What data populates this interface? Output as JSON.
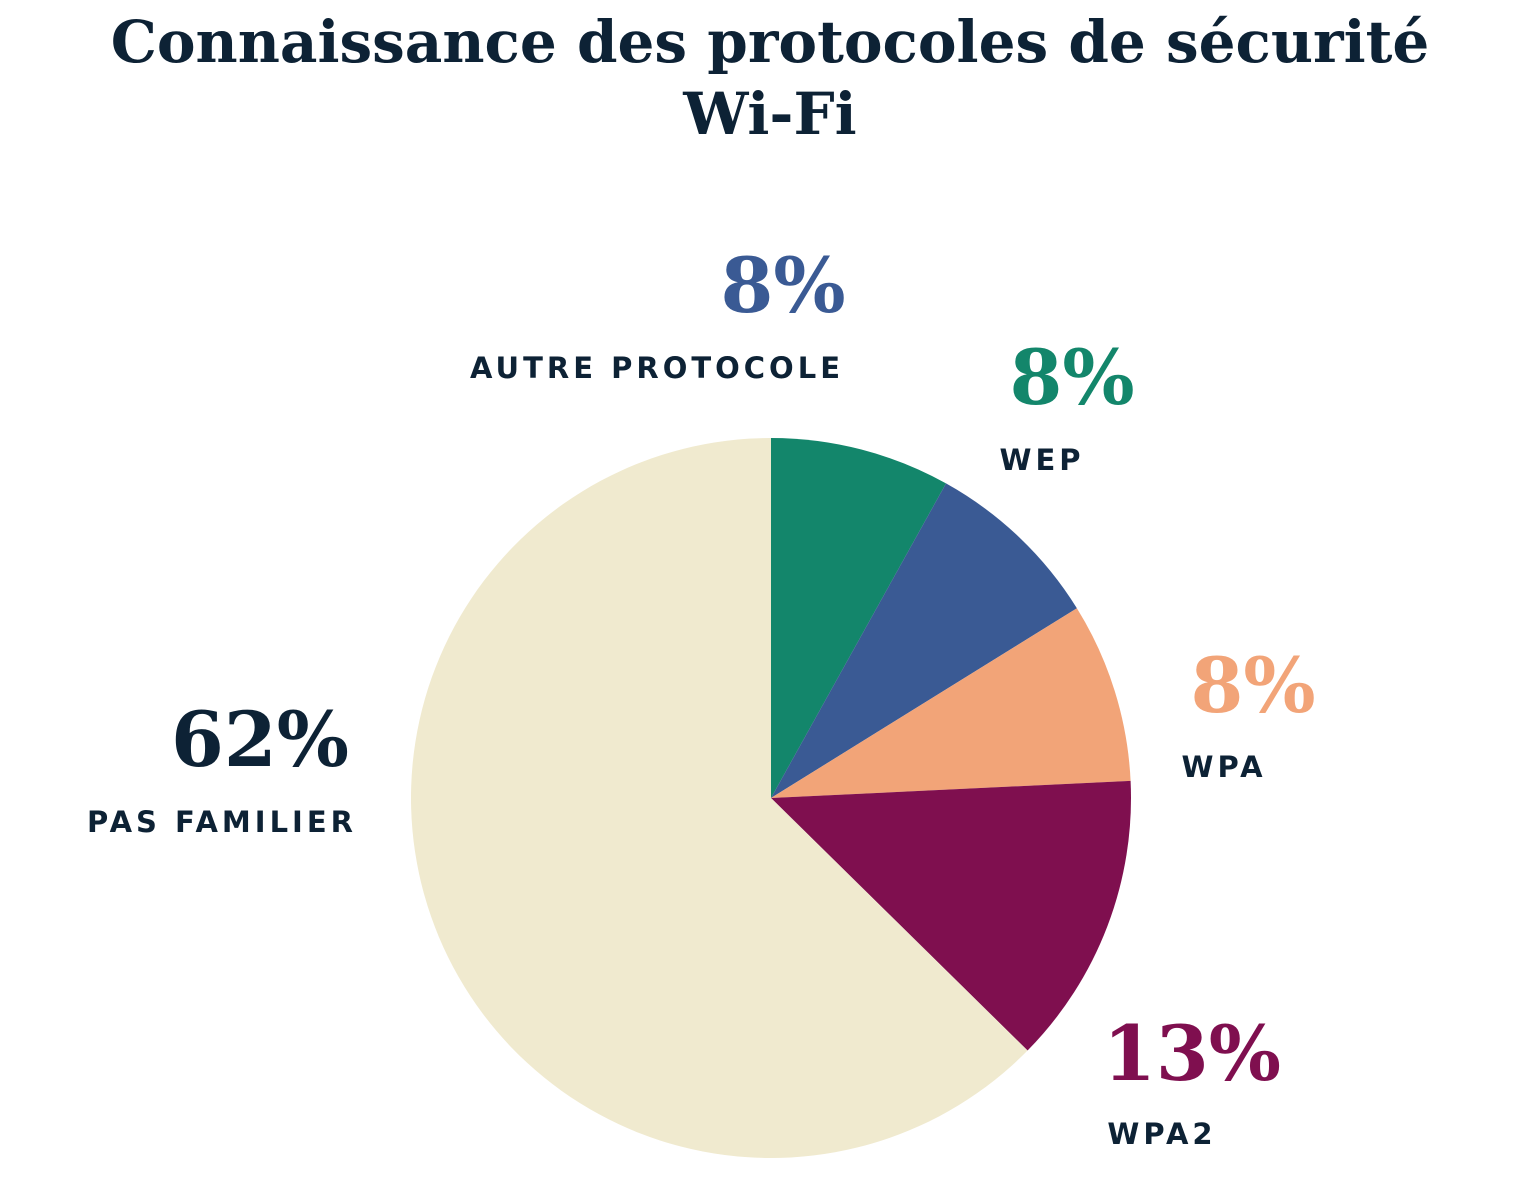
{
  "chart_data": {
    "type": "pie",
    "title_lines": [
      "Connaissance des protocoles de sécurité",
      "Wi-Fi"
    ],
    "start_angle_deg": 0,
    "direction": "clockwise",
    "slices": [
      {
        "label": "WEP",
        "value": 8,
        "value_label": "8%",
        "color": "#13866b"
      },
      {
        "label": "AUTRE PROTOCOLE",
        "value": 8,
        "value_label": "8%",
        "color": "#3a5a94"
      },
      {
        "label": "WPA",
        "value": 8,
        "value_label": "8%",
        "color": "#f2a478"
      },
      {
        "label": "WPA2",
        "value": 13,
        "value_label": "13%",
        "color": "#7f0f4f"
      },
      {
        "label": "PAS FAMILIER",
        "value": 62,
        "value_label": "62%",
        "color": "#f0eacf"
      }
    ],
    "label_text_color": "#0d2235"
  }
}
